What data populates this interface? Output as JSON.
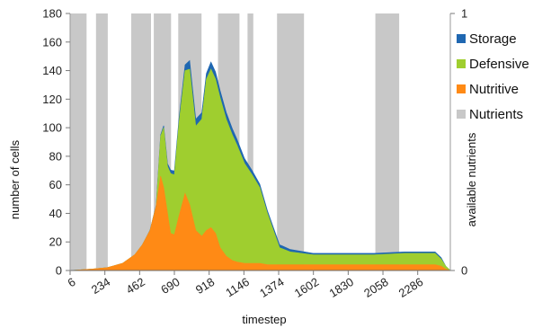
{
  "chart_data": {
    "type": "area",
    "title": "",
    "xlabel": "timestep",
    "ylabel": "number of cells",
    "y2label": "available nutrients",
    "x_ticks": [
      6,
      234,
      462,
      690,
      918,
      1146,
      1374,
      1602,
      1830,
      2058,
      2286
    ],
    "xlim": [
      6,
      2500
    ],
    "y_ticks": [
      0,
      20,
      40,
      60,
      80,
      100,
      120,
      140,
      160,
      180
    ],
    "ylim": [
      0,
      180
    ],
    "y2_ticks": [
      0,
      1
    ],
    "y2lim": [
      0,
      1
    ],
    "grid": false,
    "legend_position": "right",
    "colors": {
      "storage": "#1f67b1",
      "defensive": "#9fce2f",
      "nutritive": "#ff8a15",
      "nutrients": "#c8c8c8"
    },
    "nutrient_bands": [
      [
        6,
        114
      ],
      [
        176,
        253
      ],
      [
        407,
        537
      ],
      [
        555,
        668
      ],
      [
        715,
        868
      ],
      [
        976,
        1117
      ],
      [
        1170,
        1208
      ],
      [
        1363,
        1540
      ],
      [
        2008,
        2164
      ]
    ],
    "series": [
      {
        "name": "Nutritive",
        "x": [
          6,
          150,
          250,
          350,
          430,
          480,
          530,
          570,
          600,
          620,
          645,
          665,
          690,
          720,
          760,
          790,
          830,
          870,
          900,
          930,
          960,
          990,
          1030,
          1070,
          1100,
          1150,
          1200,
          1250,
          1300,
          1400,
          1600,
          1800,
          2000,
          2200,
          2400,
          2440,
          2470,
          2500
        ],
        "values": [
          0,
          1,
          2,
          5,
          11,
          18,
          28,
          45,
          66,
          58,
          40,
          26,
          25,
          38,
          54,
          46,
          28,
          24,
          28,
          30,
          26,
          16,
          10,
          7,
          6,
          5,
          5,
          5,
          4,
          4,
          4,
          4,
          4,
          4,
          4,
          3,
          1,
          0
        ]
      },
      {
        "name": "Defensive",
        "x": [
          6,
          150,
          250,
          350,
          430,
          480,
          530,
          570,
          600,
          620,
          645,
          665,
          690,
          720,
          760,
          790,
          810,
          830,
          870,
          900,
          930,
          960,
          990,
          1030,
          1070,
          1100,
          1150,
          1200,
          1250,
          1300,
          1380,
          1450,
          1600,
          1800,
          2000,
          2200,
          2400,
          2440,
          2470,
          2500
        ],
        "values": [
          0,
          0,
          0,
          0,
          0,
          0,
          0,
          0,
          28,
          42,
          33,
          42,
          42,
          65,
          86,
          95,
          84,
          73,
          82,
          106,
          111,
          108,
          105,
          96,
          88,
          82,
          70,
          62,
          53,
          36,
          12,
          9,
          7,
          7,
          7,
          8,
          8,
          5,
          2,
          0
        ]
      },
      {
        "name": "Storage",
        "x": [
          6,
          500,
          600,
          650,
          760,
          790,
          830,
          900,
          930,
          1000,
          1100,
          1200,
          1300,
          1400,
          1600,
          1800,
          2000,
          2200,
          2400,
          2440,
          2470,
          2500
        ],
        "values": [
          0,
          0,
          1,
          2,
          4,
          6,
          5,
          4,
          5,
          5,
          4,
          3,
          2,
          2,
          1,
          1,
          1,
          1,
          1,
          1,
          0,
          0
        ]
      }
    ],
    "legend": [
      "Storage",
      "Defensive",
      "Nutritive",
      "Nutrients"
    ]
  }
}
